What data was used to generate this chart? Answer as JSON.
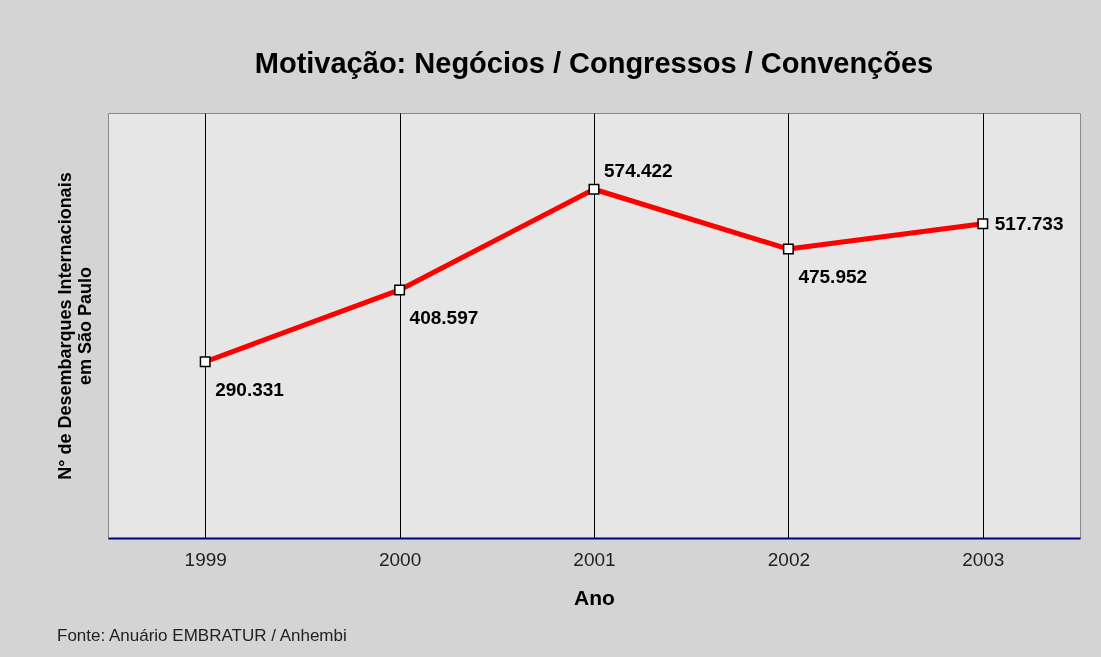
{
  "chart_data": {
    "type": "line",
    "title": "Motivação: Negócios / Congressos / Convenções",
    "xlabel": "Ano",
    "ylabel": "N° de Desembarques Internacionais\nem São Paulo",
    "categories": [
      "1999",
      "2000",
      "2001",
      "2002",
      "2003"
    ],
    "series": [
      {
        "color": "#ff0000",
        "values": [
          290331,
          408597,
          574422,
          475952,
          517733
        ],
        "value_labels": [
          "290.331",
          "408.597",
          "574.422",
          "475.952",
          "517.733"
        ]
      }
    ],
    "ylim": [
      0,
      700000
    ],
    "tick_labels": "x",
    "grid": "x",
    "marker": "square",
    "line_style": "solid",
    "annotations": [
      "Fonte: Anuário EMBRATUR / Anhembi"
    ]
  }
}
